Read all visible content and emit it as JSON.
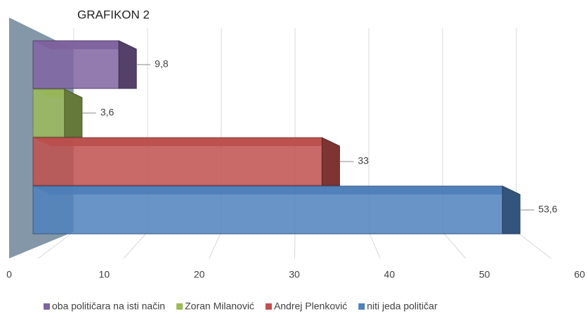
{
  "chart_data": {
    "type": "bar3d",
    "title": "GRAFIKON 2",
    "categories": [
      "oba političara na isti način",
      "Zoran Milanović",
      "Andrej Plenković",
      "niti jeda političar"
    ],
    "values": [
      9.8,
      3.6,
      33,
      53.6
    ],
    "value_labels": [
      "9,8",
      "3,6",
      "33",
      "53,6"
    ],
    "colors": [
      "#8064a2",
      "#9bbb59",
      "#c0504d",
      "#4f81bd"
    ],
    "xlim": [
      0,
      60
    ],
    "xticks": [
      0,
      10,
      20,
      30,
      40,
      50,
      60
    ],
    "grid": true
  }
}
